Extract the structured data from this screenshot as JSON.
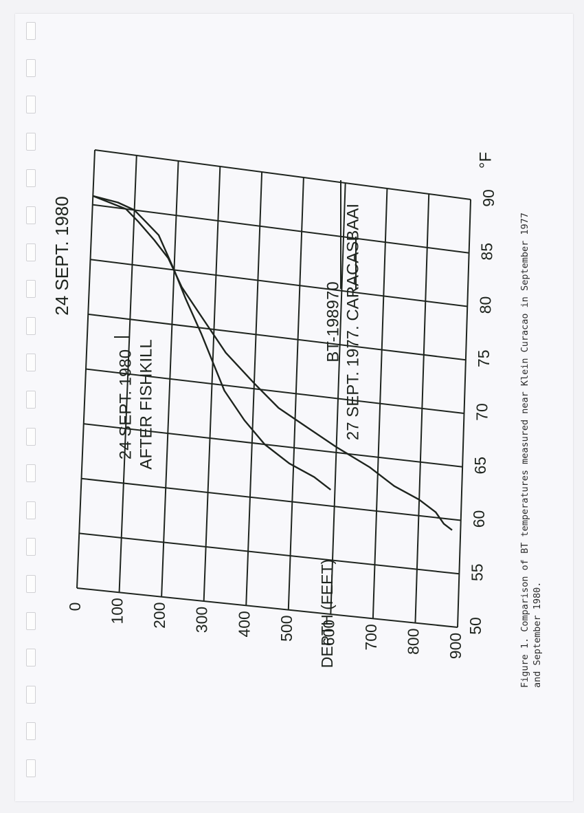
{
  "chart_data": {
    "type": "line",
    "title": "24 SEPT. 1980",
    "xlabel": "°F",
    "ylabel": "DEPTH (FEET)",
    "xlim": [
      50,
      90
    ],
    "ylim": [
      0,
      900
    ],
    "x_ticks": [
      "50",
      "55",
      "60",
      "65",
      "70",
      "75",
      "80",
      "85",
      "90"
    ],
    "y_ticks": [
      "0",
      "100",
      "200",
      "300",
      "400",
      "500",
      "600",
      "700",
      "800",
      "900"
    ],
    "grid": true,
    "series": [
      {
        "name": "24 SEPT. 1980 AFTER FISHKILL",
        "points": [
          [
            85.8,
            0
          ],
          [
            85.5,
            60
          ],
          [
            85.0,
            100
          ],
          [
            84.0,
            130
          ],
          [
            83.0,
            160
          ],
          [
            81.5,
            180
          ],
          [
            80.0,
            200
          ],
          [
            77.5,
            230
          ],
          [
            74.5,
            270
          ],
          [
            72.0,
            300
          ],
          [
            69.5,
            330
          ],
          [
            67.0,
            380
          ],
          [
            65.0,
            430
          ],
          [
            63.5,
            490
          ],
          [
            62.5,
            550
          ],
          [
            61.5,
            590
          ]
        ]
      },
      {
        "name": "BT-198970 27 SEPT. 1977. CARACASBAAI",
        "points": [
          [
            85.8,
            0
          ],
          [
            85.0,
            80
          ],
          [
            84.0,
            110
          ],
          [
            82.5,
            150
          ],
          [
            81.0,
            185
          ],
          [
            78.5,
            220
          ],
          [
            76.0,
            270
          ],
          [
            73.0,
            330
          ],
          [
            70.5,
            400
          ],
          [
            68.5,
            460
          ],
          [
            67.0,
            530
          ],
          [
            65.5,
            600
          ],
          [
            64.0,
            680
          ],
          [
            62.5,
            740
          ],
          [
            61.5,
            800
          ],
          [
            60.5,
            840
          ],
          [
            59.5,
            860
          ],
          [
            59.0,
            880
          ]
        ]
      }
    ]
  },
  "labels": {
    "fishkill_line1": "24 SEPT. 1980",
    "fishkill_line2": "AFTER FISHKILL",
    "bt_line1": "BT-198970",
    "bt_line2": "27 SEPT. 1977. CARACASBAAI"
  },
  "caption": {
    "line1": "Figure 1.  Comparison of BT temperatures measured near Klein Curacao in September 1977",
    "line2": "           and September 1980."
  },
  "colors": {
    "ink": "#1e241e",
    "paper": "#f8f8fb"
  }
}
